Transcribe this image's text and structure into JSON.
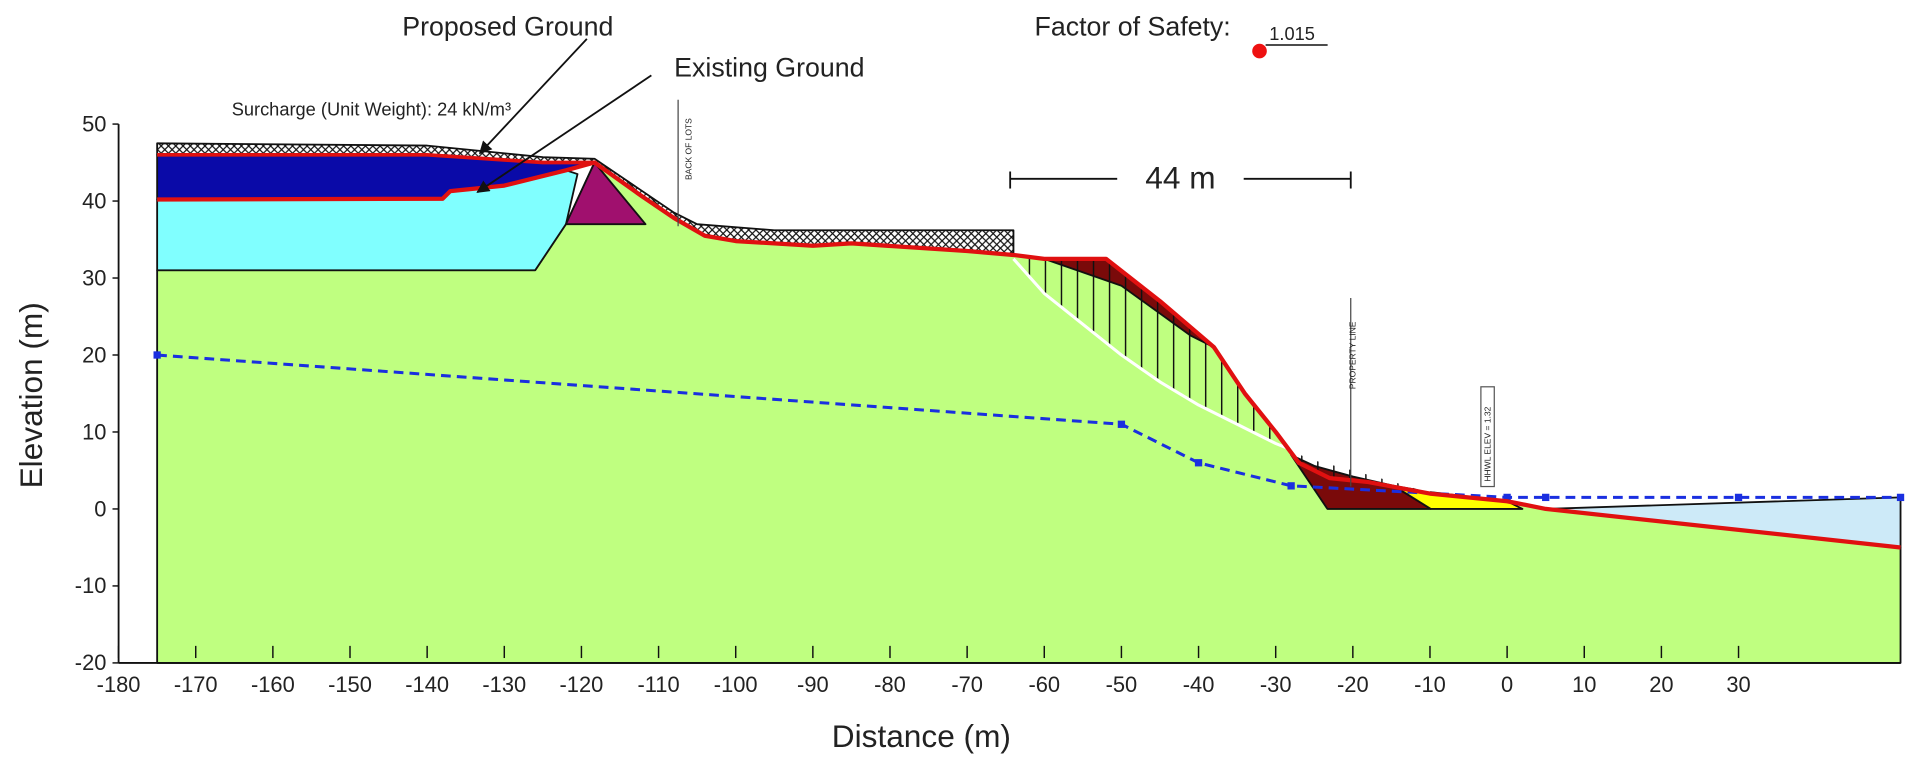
{
  "chart_data": {
    "type": "cross-section",
    "xlabel": "Distance (m)",
    "ylabel": "Elevation (m)",
    "xlim": [
      -180,
      51
    ],
    "ylim": [
      -20,
      50
    ],
    "xticks": [
      -180,
      -170,
      -160,
      -150,
      -140,
      -130,
      -120,
      -110,
      -100,
      -90,
      -80,
      -70,
      -60,
      -50,
      -40,
      -30,
      -20,
      -10,
      0,
      10,
      20,
      30
    ],
    "yticks": [
      -20,
      -10,
      0,
      10,
      20,
      30,
      40,
      50
    ],
    "annotations": {
      "proposed": "Proposed Ground",
      "existing": "Existing Ground",
      "surcharge": "Surcharge (Unit Weight): 24 kN/m³",
      "fos_label": "Factor of Safety:",
      "fos_value": "1.015",
      "dimension": "44 m",
      "back_of_lots": "BACK OF LOTS",
      "property_line": "PROPERTY LINE",
      "hhwl": "HHWL ELEV = 1.32"
    },
    "regions": [
      {
        "color": "#bfff80",
        "x": [
          -175,
          -126,
          -122,
          -118.3,
          -112,
          -108,
          -104,
          -100,
          -90,
          -85,
          -70,
          -64,
          -60,
          -52,
          -45,
          -38,
          -34,
          -30,
          -27,
          -23,
          -18,
          -10,
          0,
          5,
          51,
          51,
          -175
        ],
        "y": [
          31,
          31,
          37,
          45,
          40.5,
          37.8,
          35.5,
          34.8,
          34.2,
          34.5,
          33.5,
          33,
          32.5,
          32.5,
          27,
          21,
          15,
          10,
          6,
          4,
          3.5,
          2,
          1,
          0,
          -5,
          -20,
          -20
        ]
      },
      {
        "color": "#80ffff",
        "x": [
          -175,
          -138,
          -137,
          -130,
          -122,
          -120.5,
          -122,
          -126,
          -175
        ],
        "y": [
          40.2,
          40.3,
          41.3,
          42,
          44,
          43.5,
          37,
          31,
          31
        ]
      },
      {
        "color": "#0a0aa8",
        "x": [
          -175,
          -140,
          -125,
          -118.3,
          -122,
          -130,
          -137,
          -138,
          -175
        ],
        "y": [
          46,
          46,
          45,
          45,
          44,
          42,
          41.3,
          40.3,
          40.2
        ]
      },
      {
        "color": "#a0106e",
        "x": [
          -122,
          -118.3,
          -111.7
        ],
        "y": [
          37,
          45,
          37
        ]
      },
      {
        "color": "#7a0a0a",
        "x": [
          -28,
          -23.3,
          -9.9,
          -14.7,
          -20,
          -25
        ],
        "y": [
          7,
          0,
          0,
          3,
          4.2,
          5.6
        ]
      },
      {
        "color": "#7a0a0a",
        "x": [
          -60,
          -52,
          -45,
          -38,
          -41,
          -50
        ],
        "y": [
          32.5,
          32.5,
          27,
          21,
          22.5,
          29
        ]
      },
      {
        "color": "#ffff00",
        "x": [
          -14.7,
          -9.9,
          2,
          0,
          -10
        ],
        "y": [
          3,
          0,
          0,
          1,
          2.2
        ]
      },
      {
        "color": "#cdeaf8",
        "x": [
          5,
          51,
          51
        ],
        "y": [
          0,
          1.5,
          -5
        ]
      },
      {
        "color": "#ffffff",
        "hatch": true,
        "x": [
          -175,
          -140,
          -125,
          -118.3,
          -108,
          -105,
          -95,
          -64,
          -64,
          -70,
          -85,
          -90,
          -100,
          -104,
          -108,
          -112,
          -118.3,
          -125,
          -140,
          -175
        ],
        "y": [
          47.5,
          47.2,
          45.7,
          45.5,
          38.5,
          37,
          36.2,
          36.2,
          33,
          33.5,
          34.5,
          34.2,
          34.8,
          35.5,
          37.8,
          40.5,
          45,
          45,
          46,
          46
        ]
      }
    ],
    "lines": [
      {
        "color": "#1a2fe0",
        "dashed": true,
        "width": 2.5,
        "markers": true,
        "x": [
          -175,
          -50,
          -40,
          -28,
          0,
          5,
          30,
          51
        ],
        "y": [
          20,
          11,
          6,
          3,
          1.5,
          1.5,
          1.5,
          1.5
        ]
      },
      {
        "color": "#ffffff",
        "width": 2.5,
        "x": [
          -64,
          -60,
          -55,
          -50,
          -45,
          -40,
          -35,
          -30,
          -25,
          -20,
          -15,
          -10
        ],
        "y": [
          32.5,
          28,
          24,
          20,
          16.5,
          13.5,
          11,
          8.5,
          6.5,
          5.2,
          3.8,
          2.3
        ]
      },
      {
        "color": "#e01010",
        "width": 3.5,
        "x": [
          -175,
          -138,
          -137,
          -130,
          -122,
          -118.3,
          -112,
          -108,
          -104,
          -100,
          -90,
          -85,
          -70,
          -64,
          -60,
          -52,
          -45,
          -38,
          -34,
          -30,
          -27,
          -23,
          -18,
          -10,
          0,
          5,
          51
        ],
        "y": [
          40.2,
          40.3,
          41.3,
          42,
          44,
          45,
          40.5,
          37.8,
          35.5,
          34.8,
          34.2,
          34.5,
          33.5,
          33,
          32.5,
          32.5,
          27,
          21,
          15,
          10,
          6,
          4,
          3.5,
          2,
          1,
          0,
          -5
        ]
      },
      {
        "color": "#e01010",
        "width": 3,
        "x": [
          -175,
          -140,
          -125,
          -118.3
        ],
        "y": [
          46,
          46,
          45,
          45
        ]
      }
    ]
  }
}
